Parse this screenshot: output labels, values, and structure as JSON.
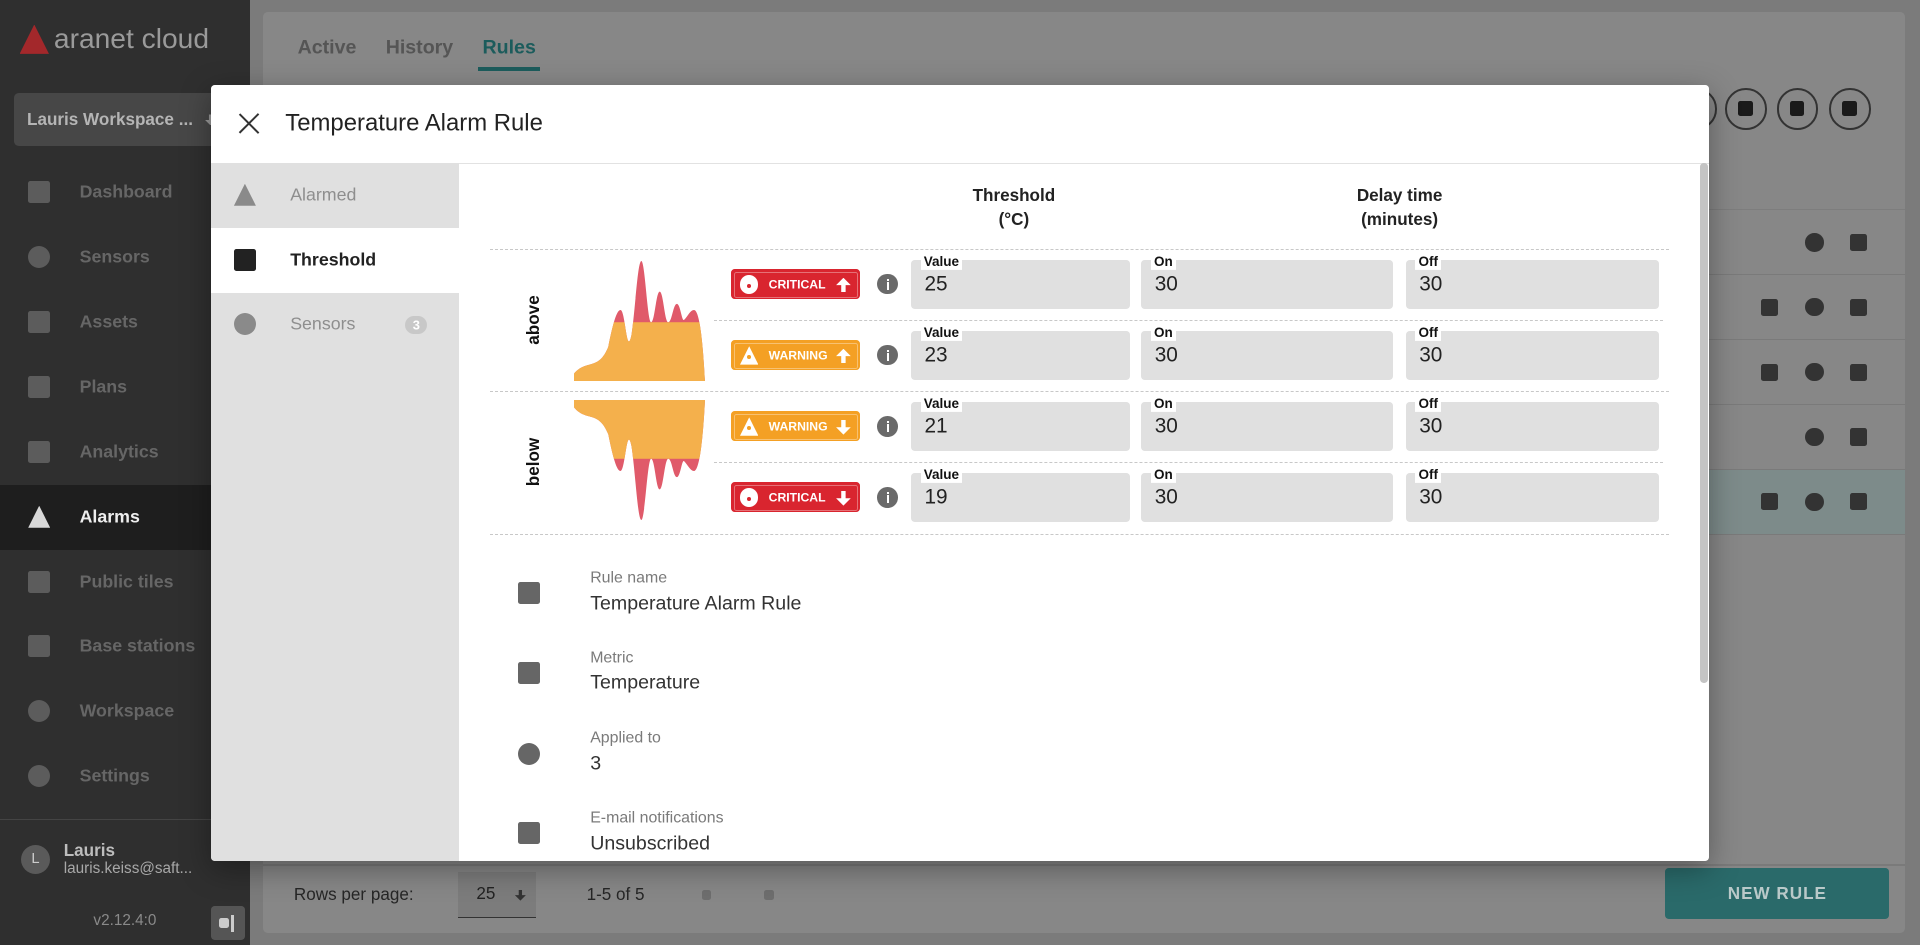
{
  "brand": "aranet cloud",
  "workspace": "Lauris Workspace ...",
  "nav": [
    {
      "label": "Dashboard"
    },
    {
      "label": "Sensors"
    },
    {
      "label": "Assets"
    },
    {
      "label": "Plans"
    },
    {
      "label": "Analytics"
    },
    {
      "label": "Alarms",
      "active": true
    },
    {
      "label": "Public tiles"
    },
    {
      "label": "Base stations"
    },
    {
      "label": "Workspace"
    },
    {
      "label": "Settings"
    }
  ],
  "user": {
    "initial": "L",
    "name": "Lauris",
    "email": "lauris.keiss@saft..."
  },
  "version": "v2.12.4:0",
  "tabs": [
    {
      "label": "Active"
    },
    {
      "label": "History"
    },
    {
      "label": "Rules",
      "active": true
    }
  ],
  "pagination": {
    "label": "Rows per page:",
    "rows_per_page": 25,
    "range": "1-5 of 5"
  },
  "new_rule_button": "NEW RULE",
  "dialog": {
    "title": "Temperature Alarm Rule",
    "menu": [
      {
        "label": "Alarmed"
      },
      {
        "label": "Threshold",
        "active": true
      },
      {
        "label": "Sensors",
        "badge": 3
      }
    ],
    "headers": {
      "threshold": "Threshold",
      "threshold_unit": "(°C)",
      "delay": "Delay time",
      "delay_unit": "(minutes)"
    },
    "field_labels": {
      "value": "Value",
      "on": "On",
      "off": "Off"
    },
    "groups": [
      {
        "label": "above",
        "rows": [
          {
            "level": "CRITICAL",
            "color": "#d9252f",
            "icon": "error",
            "arrow": "up",
            "value": 25,
            "on": 30,
            "off": 30
          },
          {
            "level": "WARNING",
            "color": "#f4a024",
            "icon": "warning",
            "arrow": "up",
            "value": 23,
            "on": 30,
            "off": 30
          }
        ]
      },
      {
        "label": "below",
        "rows": [
          {
            "level": "WARNING",
            "color": "#f4a024",
            "icon": "warning",
            "arrow": "down",
            "value": 21,
            "on": 30,
            "off": 30
          },
          {
            "level": "CRITICAL",
            "color": "#d9252f",
            "icon": "error",
            "arrow": "down",
            "value": 19,
            "on": 30,
            "off": 30
          }
        ]
      }
    ],
    "details": [
      {
        "label": "Rule name",
        "value": "Temperature Alarm Rule"
      },
      {
        "label": "Metric",
        "value": "Temperature"
      },
      {
        "label": "Applied to",
        "value": 3
      },
      {
        "label": "E-mail notifications",
        "value": "Unsubscribed"
      }
    ]
  }
}
